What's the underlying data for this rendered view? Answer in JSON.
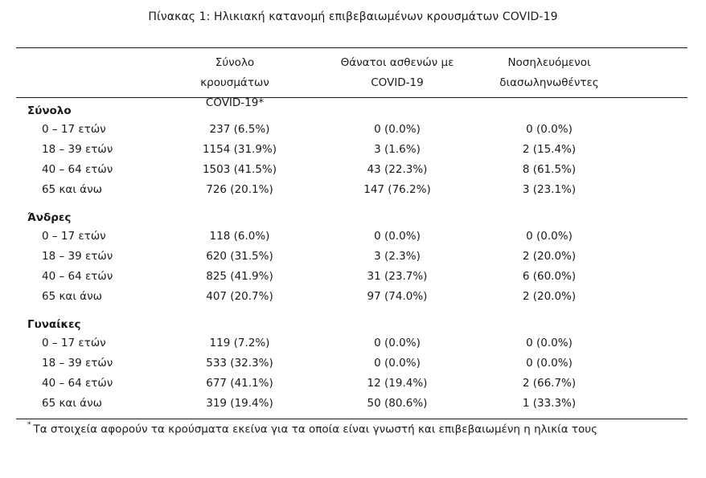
{
  "caption": "Πίνακας 1: Ηλικιακή κατανομή επιβεβαιωμένων κρουσμάτων COVID-19",
  "headers": {
    "c1": [
      "Σύνολο κρουσμάτων",
      "COVID-19*"
    ],
    "c2": [
      "Θάνατοι ασθενών με",
      "COVID-19"
    ],
    "c3": [
      "Νοσηλευόμενοι",
      "διασωληνωθέντες"
    ]
  },
  "groups": [
    {
      "title": "Σύνολο",
      "rows": [
        {
          "label": "0 – 17 ετών",
          "cases": "237 (6.5%)",
          "deaths": "0 (0.0%)",
          "intubated": "0 (0.0%)"
        },
        {
          "label": "18 – 39 ετών",
          "cases": "1154 (31.9%)",
          "deaths": "3 (1.6%)",
          "intubated": "2 (15.4%)"
        },
        {
          "label": "40 – 64 ετών",
          "cases": "1503 (41.5%)",
          "deaths": "43 (22.3%)",
          "intubated": "8 (61.5%)"
        },
        {
          "label": "65 και άνω",
          "cases": "726 (20.1%)",
          "deaths": "147 (76.2%)",
          "intubated": "3 (23.1%)"
        }
      ]
    },
    {
      "title": "Άνδρες",
      "rows": [
        {
          "label": "0 – 17 ετών",
          "cases": "118 (6.0%)",
          "deaths": "0 (0.0%)",
          "intubated": "0 (0.0%)"
        },
        {
          "label": "18 – 39 ετών",
          "cases": "620 (31.5%)",
          "deaths": "3 (2.3%)",
          "intubated": "2 (20.0%)"
        },
        {
          "label": "40 – 64 ετών",
          "cases": "825 (41.9%)",
          "deaths": "31 (23.7%)",
          "intubated": "6 (60.0%)"
        },
        {
          "label": "65 και άνω",
          "cases": "407 (20.7%)",
          "deaths": "97 (74.0%)",
          "intubated": "2 (20.0%)"
        }
      ]
    },
    {
      "title": "Γυναίκες",
      "rows": [
        {
          "label": "0 – 17 ετών",
          "cases": "119 (7.2%)",
          "deaths": "0 (0.0%)",
          "intubated": "0 (0.0%)"
        },
        {
          "label": "18 – 39 ετών",
          "cases": "533 (32.3%)",
          "deaths": "0 (0.0%)",
          "intubated": "0 (0.0%)"
        },
        {
          "label": "40 – 64 ετών",
          "cases": "677 (41.1%)",
          "deaths": "12 (19.4%)",
          "intubated": "2 (66.7%)"
        },
        {
          "label": "65 και άνω",
          "cases": "319 (19.4%)",
          "deaths": "50 (80.6%)",
          "intubated": "1 (33.3%)"
        }
      ]
    }
  ],
  "footnote": {
    "marker": "*",
    "text": "Τα στοιχεία αφορούν τα κρούσματα εκείνα για τα οποία είναι γνωστή και επιβεβαιωμένη η ηλικία τους"
  }
}
